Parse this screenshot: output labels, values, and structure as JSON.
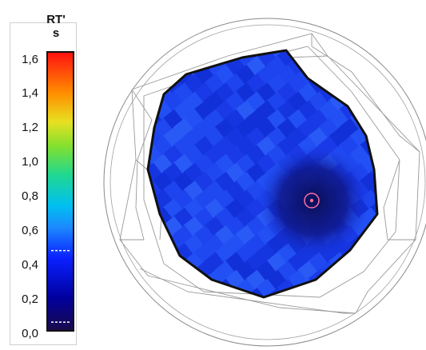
{
  "legend": {
    "title_line1": "RT'",
    "title_line2": "s",
    "ticks": [
      "1,6",
      "1,4",
      "1,2",
      "1,0",
      "0,8",
      "0,6",
      "0,4",
      "0,2",
      "0,0"
    ],
    "min_value": 0.0,
    "max_value": 1.6,
    "dashed_markers": [
      0.46,
      0.05
    ],
    "colormap": [
      "#1a0a4a",
      "#0000aa",
      "#0a28ff",
      "#00c0ff",
      "#30e060",
      "#e0e020",
      "#ff8000",
      "#ff1010"
    ]
  },
  "room_map": {
    "fill_color": "#1838e0",
    "dark_zone_color": "#0c1470",
    "outline_color": "#111111",
    "marker_color": "#ff6fa0",
    "value_range": "approximately 0.3 to 0.4 s"
  }
}
